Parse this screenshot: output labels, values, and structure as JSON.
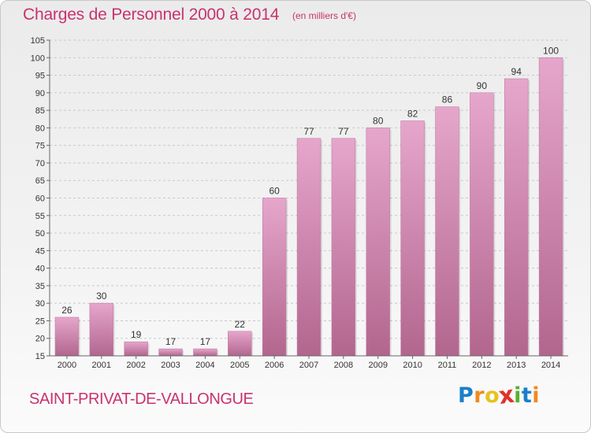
{
  "title": "Charges de Personnel 2000 à 2014",
  "subtitle": "(en milliers d'€)",
  "location": "SAINT-PRIVAT-DE-VALLONGUE",
  "logo": {
    "letters": [
      "P",
      "r",
      "o",
      "x",
      "i",
      "t",
      "i"
    ],
    "colors": [
      "#1a7fc9",
      "#f08a1c",
      "#e6c21e",
      "#e0312a",
      "#58b030",
      "#1a7fc9",
      "#f08a1c"
    ]
  },
  "colors": {
    "bar_top": "#e6a6cc",
    "bar_bottom": "#b2668e",
    "accent": "#c8336e",
    "grid": "#c9c9c9"
  },
  "chart_data": {
    "type": "bar",
    "title": "Charges de Personnel 2000 à 2014",
    "subtitle": "(en milliers d'€)",
    "xlabel": "",
    "ylabel": "",
    "categories": [
      "2000",
      "2001",
      "2002",
      "2003",
      "2004",
      "2005",
      "2006",
      "2007",
      "2008",
      "2009",
      "2010",
      "2011",
      "2012",
      "2013",
      "2014"
    ],
    "values": [
      26,
      30,
      19,
      17,
      17,
      22,
      60,
      77,
      77,
      80,
      82,
      86,
      90,
      94,
      100
    ],
    "ylim": [
      15,
      105
    ],
    "yticks": [
      15,
      20,
      25,
      30,
      35,
      40,
      45,
      50,
      55,
      60,
      65,
      70,
      75,
      80,
      85,
      90,
      95,
      100,
      105
    ],
    "grid": true
  }
}
